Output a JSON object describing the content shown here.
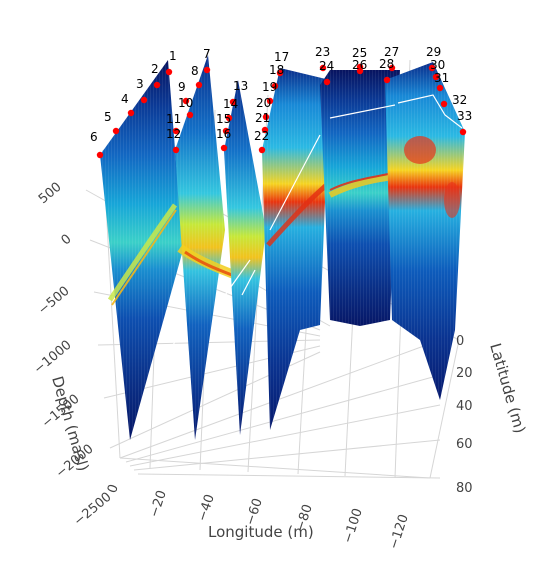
{
  "chart_data": {
    "type": "3d-fence-section",
    "xlabel": "Longitude (m)",
    "ylabel": "Latitude (m)",
    "zlabel": "Depth (masl)",
    "x_ticks": [
      "0",
      "−20",
      "−40",
      "−60",
      "−80",
      "−100",
      "−120"
    ],
    "y_ticks": [
      "0",
      "20",
      "40",
      "60",
      "80"
    ],
    "z_ticks": [
      "500",
      "0",
      "−500",
      "−1000",
      "−1500",
      "−2000",
      "−2500"
    ],
    "xlim": [
      0,
      -130
    ],
    "ylim": [
      0,
      80
    ],
    "zlim": [
      -2600,
      700
    ],
    "colorscale": "jet",
    "well_marker_color": "#ff0000",
    "wells": [
      {
        "id": "1",
        "x": -2,
        "y": 6
      },
      {
        "id": "2",
        "x": -2,
        "y": 12
      },
      {
        "id": "3",
        "x": -2,
        "y": 20
      },
      {
        "id": "4",
        "x": -2,
        "y": 28
      },
      {
        "id": "5",
        "x": -2,
        "y": 36
      },
      {
        "id": "6",
        "x": -2,
        "y": 46
      },
      {
        "id": "7",
        "x": -24,
        "y": 6
      },
      {
        "id": "8",
        "x": -24,
        "y": 12
      },
      {
        "id": "9",
        "x": -24,
        "y": 20
      },
      {
        "id": "10",
        "x": -24,
        "y": 28
      },
      {
        "id": "11",
        "x": -24,
        "y": 36
      },
      {
        "id": "12",
        "x": -24,
        "y": 46
      },
      {
        "id": "13",
        "x": -40,
        "y": 20
      },
      {
        "id": "14",
        "x": -40,
        "y": 28
      },
      {
        "id": "15",
        "x": -40,
        "y": 36
      },
      {
        "id": "16",
        "x": -40,
        "y": 46
      },
      {
        "id": "17",
        "x": -58,
        "y": 6
      },
      {
        "id": "18",
        "x": -58,
        "y": 12
      },
      {
        "id": "19",
        "x": -58,
        "y": 20
      },
      {
        "id": "20",
        "x": -58,
        "y": 28
      },
      {
        "id": "21",
        "x": -58,
        "y": 36
      },
      {
        "id": "22",
        "x": -58,
        "y": 46
      },
      {
        "id": "23",
        "x": -80,
        "y": 6
      },
      {
        "id": "24",
        "x": -80,
        "y": 12
      },
      {
        "id": "25",
        "x": -95,
        "y": 6
      },
      {
        "id": "26",
        "x": -95,
        "y": 8
      },
      {
        "id": "27",
        "x": -110,
        "y": 6
      },
      {
        "id": "28",
        "x": -110,
        "y": 12
      },
      {
        "id": "29",
        "x": -124,
        "y": 6
      },
      {
        "id": "30",
        "x": -124,
        "y": 12
      },
      {
        "id": "31",
        "x": -124,
        "y": 20
      },
      {
        "id": "32",
        "x": -124,
        "y": 28
      },
      {
        "id": "33",
        "x": -124,
        "y": 36
      }
    ]
  }
}
